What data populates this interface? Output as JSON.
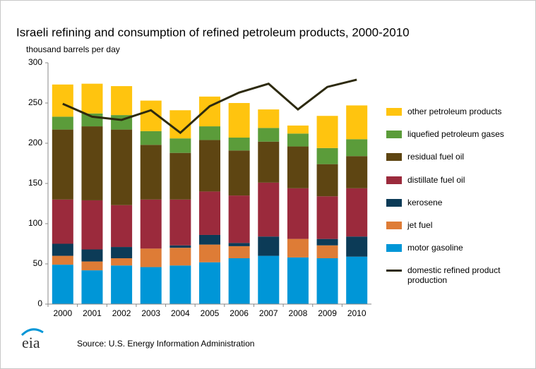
{
  "chart_data": {
    "type": "bar",
    "stacked": true,
    "title": "Israeli refining and consumption of refined petroleum products, 2000-2010",
    "subtitle": "thousand barrels per day",
    "categories": [
      "2000",
      "2001",
      "2002",
      "2003",
      "2004",
      "2005",
      "2006",
      "2007",
      "2008",
      "2009",
      "2010"
    ],
    "ylim": [
      0,
      300
    ],
    "yticks": [
      0,
      50,
      100,
      150,
      200,
      250,
      300
    ],
    "series": [
      {
        "name": "motor gasoline",
        "color": "#0096d7",
        "values": [
          49,
          42,
          48,
          46,
          48,
          52,
          57,
          60,
          58,
          57,
          59
        ]
      },
      {
        "name": "jet fuel",
        "color": "#de7c36",
        "values": [
          11,
          11,
          9,
          23,
          22,
          22,
          15,
          0,
          23,
          16,
          0
        ]
      },
      {
        "name": "kerosene",
        "color": "#0c3b57",
        "values": [
          15,
          15,
          14,
          0,
          3,
          12,
          4,
          24,
          0,
          8,
          25
        ]
      },
      {
        "name": "distillate fuel oil",
        "color": "#9b2a3c",
        "values": [
          55,
          61,
          52,
          61,
          57,
          54,
          59,
          67,
          63,
          53,
          60
        ]
      },
      {
        "name": "residual fuel oil",
        "color": "#5e4512",
        "values": [
          87,
          92,
          94,
          68,
          58,
          64,
          56,
          51,
          52,
          40,
          40
        ]
      },
      {
        "name": "liquefied petroleum gases",
        "color": "#5b9c3a",
        "values": [
          16,
          16,
          18,
          17,
          18,
          17,
          16,
          17,
          16,
          20,
          21
        ]
      },
      {
        "name": "other petroleum products",
        "color": "#ffc40f",
        "values": [
          40,
          37,
          36,
          38,
          35,
          37,
          43,
          23,
          10,
          40,
          42
        ]
      },
      {
        "name": "domestic refined product production",
        "color": "#2d2a0f",
        "type": "line",
        "values": [
          249,
          233,
          229,
          241,
          213,
          246,
          263,
          274,
          242,
          270,
          279
        ]
      }
    ],
    "source": "Source:  U.S. Energy Information Administration",
    "logo": "eia"
  }
}
